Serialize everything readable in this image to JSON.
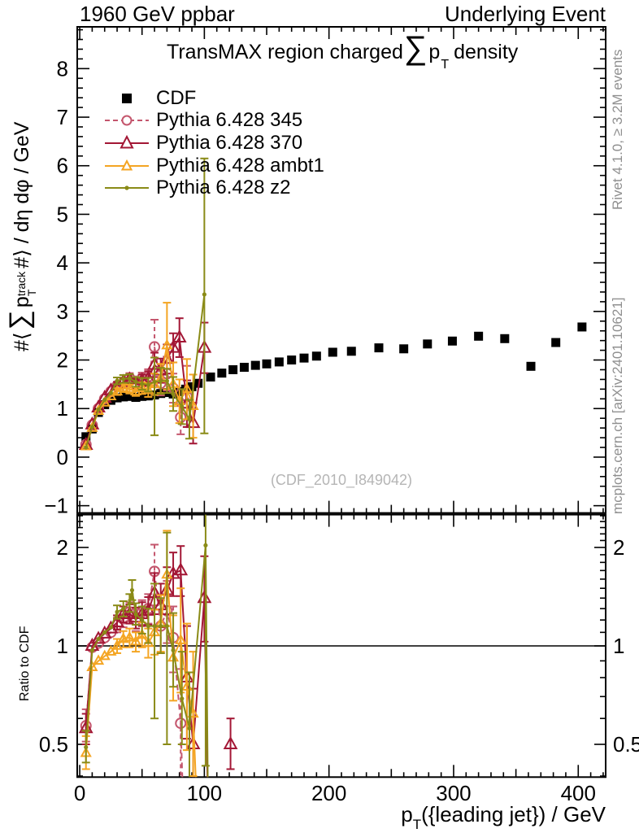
{
  "header": {
    "left": "1960 GeV ppbar",
    "right": "Underlying Event"
  },
  "side_notes": {
    "top": "Rivet 4.1.0, ≥ 3.2M events",
    "bottom": "mcplots.cern.ch [arXiv:2401.10621]"
  },
  "watermark": "(CDF_2010_I849042)",
  "title_parts": {
    "prefix": "TransMAX region charged",
    "sum": "∑",
    "p": "p",
    "sub": "T",
    "suffix": "density"
  },
  "axis_labels": {
    "y_main": {
      "prefix": "#⟨",
      "sum": "∑",
      "p": "p",
      "sup": "track",
      "sub": "T",
      "suffix": "#⟩ / dη dφ / GeV"
    },
    "y_ratio": "Ratio to CDF",
    "x": {
      "p": "p",
      "sub": "T",
      "rest": "({leading jet}) / GeV"
    }
  },
  "chart_data": {
    "type": "line",
    "title": "TransMAX region charged ∑ p_T density",
    "xlabel": "p_T({leading jet}) / GeV",
    "xlim": [
      -2,
      422
    ],
    "xticks": [
      0,
      100,
      200,
      300,
      400
    ],
    "xminor_step": 10,
    "legend_position": "top-left-inside",
    "grid": false,
    "panels": {
      "main": {
        "ylabel": "#⟨∑ p_T^track #⟩ / dη dφ / GeV",
        "ylim": [
          -1.15,
          8.86
        ],
        "yticks": [
          -1,
          0,
          1,
          2,
          3,
          4,
          5,
          6,
          7,
          8
        ],
        "yminor_step": 0.2
      },
      "ratio": {
        "ylabel": "Ratio to CDF",
        "yscale": "log",
        "ylim": [
          0.397,
          2.52
        ],
        "yticks": [
          0.5,
          1,
          2
        ],
        "ref_line": 1
      }
    },
    "series": [
      {
        "name": "CDF",
        "color": "#000000",
        "marker": "square",
        "line": "none",
        "main": [
          [
            [
              5,
              0.42
            ],
            [
              10,
              0.58
            ],
            [
              15,
              0.92
            ],
            [
              20,
              1.08
            ],
            [
              25,
              1.17
            ],
            [
              30,
              1.22
            ],
            [
              35,
              1.24
            ],
            [
              40,
              1.25
            ],
            [
              45,
              1.23
            ],
            [
              50,
              1.25
            ],
            [
              55,
              1.26
            ],
            [
              60,
              1.28
            ],
            [
              65,
              1.31
            ],
            [
              70,
              1.33
            ],
            [
              75,
              1.3
            ],
            [
              80,
              1.35
            ],
            [
              85,
              1.4
            ],
            [
              90,
              1.45
            ],
            [
              95,
              1.52
            ],
            [
              105,
              1.65
            ],
            [
              114,
              1.73
            ],
            [
              123,
              1.8
            ],
            [
              132,
              1.85
            ],
            [
              141,
              1.89
            ],
            [
              150,
              1.92
            ],
            [
              160,
              1.96
            ],
            [
              170,
              2.0
            ],
            [
              180,
              2.04
            ],
            [
              190,
              2.08
            ],
            [
              203,
              2.16
            ],
            [
              218,
              2.18
            ],
            [
              240,
              2.25
            ],
            [
              260,
              2.23
            ],
            [
              279,
              2.33
            ],
            [
              299,
              2.39
            ],
            [
              320,
              2.49
            ],
            [
              341,
              2.44
            ],
            [
              362,
              1.87
            ],
            [
              382,
              2.36
            ],
            [
              403,
              2.68
            ]
          ]
        ]
      },
      {
        "name": "Pythia 6.428 345",
        "color": "#c4566d",
        "marker": "circle-open",
        "line": "dashed",
        "main": [
          [
            [
              5,
              0.26
            ],
            [
              10,
              0.66
            ],
            [
              15,
              1.0
            ],
            [
              20,
              1.2
            ],
            [
              25,
              1.35
            ],
            [
              30,
              1.47,
              1.4,
              1.54
            ],
            [
              35,
              1.52,
              1.44,
              1.6
            ],
            [
              40,
              1.63,
              1.53,
              1.73
            ],
            [
              45,
              1.5,
              1.4,
              1.6
            ],
            [
              50,
              1.62,
              1.5,
              1.74
            ],
            [
              55,
              1.66,
              1.51,
              1.81
            ],
            [
              60,
              2.27,
              1.72,
              2.83
            ],
            [
              65,
              1.52,
              1.27,
              1.77
            ],
            [
              70,
              1.72,
              1.37,
              2.07
            ],
            [
              75,
              1.42,
              1.12,
              1.72
            ],
            [
              81,
              0.82,
              0.47,
              1.17
            ],
            [
              86,
              1.25,
              0.62,
              1.88
            ]
          ]
        ],
        "ratio": [
          [
            [
              5,
              0.57,
              0.51,
              0.64
            ],
            [
              10,
              0.99
            ],
            [
              15,
              1.02
            ],
            [
              20,
              1.06
            ],
            [
              25,
              1.1
            ],
            [
              30,
              1.16,
              1.1,
              1.22
            ],
            [
              35,
              1.21,
              1.14,
              1.28
            ],
            [
              40,
              1.27,
              1.19,
              1.36
            ],
            [
              45,
              1.2,
              1.11,
              1.29
            ],
            [
              50,
              1.27,
              1.16,
              1.38
            ],
            [
              55,
              1.3,
              1.17,
              1.44
            ],
            [
              60,
              1.69,
              1.33,
              2.04
            ],
            [
              65,
              1.15,
              0.95,
              1.38
            ],
            [
              70,
              1.28,
              1.02,
              1.58
            ],
            [
              75,
              1.06,
              0.83,
              1.32
            ],
            [
              81,
              0.58,
              0.38,
              0.85
            ],
            [
              83,
              0.33,
              null,
              null,
              0
            ]
          ]
        ]
      },
      {
        "name": "Pythia 6.428 370",
        "color": "#a31735",
        "marker": "triangle-open",
        "line": "solid",
        "main": [
          [
            [
              5,
              0.25
            ],
            [
              10,
              0.67
            ],
            [
              15,
              1.02
            ],
            [
              20,
              1.22
            ],
            [
              25,
              1.37
            ],
            [
              30,
              1.48,
              1.41,
              1.55
            ],
            [
              35,
              1.55,
              1.47,
              1.63
            ],
            [
              40,
              1.6,
              1.5,
              1.7
            ],
            [
              45,
              1.52,
              1.42,
              1.62
            ],
            [
              50,
              1.58,
              1.46,
              1.7
            ],
            [
              55,
              1.62,
              1.47,
              1.77
            ],
            [
              60,
              1.9,
              1.65,
              2.15
            ],
            [
              65,
              1.78,
              1.53,
              2.03
            ],
            [
              70,
              2.02,
              1.72,
              2.32
            ],
            [
              75,
              2.25,
              1.95,
              2.55
            ],
            [
              80,
              2.46,
              2.06,
              2.86
            ],
            [
              86,
              1.1,
              0.62,
              1.58
            ],
            [
              91,
              0.7,
              0.28,
              1.12
            ],
            [
              100,
              2.25,
              1.73,
              2.77
            ]
          ]
        ],
        "ratio": [
          [
            [
              5,
              0.56,
              0.5,
              0.62
            ],
            [
              10,
              1.0
            ],
            [
              15,
              1.05
            ],
            [
              20,
              1.09
            ],
            [
              25,
              1.13
            ],
            [
              30,
              1.18,
              1.12,
              1.24
            ],
            [
              35,
              1.25,
              1.18,
              1.32
            ],
            [
              40,
              1.25,
              1.17,
              1.34
            ],
            [
              45,
              1.22,
              1.13,
              1.31
            ],
            [
              50,
              1.25,
              1.15,
              1.36
            ],
            [
              55,
              1.28,
              1.16,
              1.41
            ],
            [
              60,
              1.45,
              1.25,
              1.67
            ],
            [
              65,
              1.33,
              1.14,
              1.55
            ],
            [
              70,
              1.48,
              1.25,
              1.74
            ],
            [
              75,
              1.66,
              1.42,
              1.93
            ],
            [
              81,
              1.7,
              1.42,
              2.02
            ],
            [
              86,
              0.8,
              0.52,
              1.15
            ],
            [
              91,
              0.5,
              0.33,
              0.74
            ],
            [
              100,
              1.4,
              1.03,
              1.88
            ],
            [
              103,
              0.3,
              null,
              null,
              0
            ]
          ],
          [
            [
              121,
              0.5,
              0.42,
              0.6
            ]
          ]
        ]
      },
      {
        "name": "Pythia 6.428 ambt1",
        "color": "#f4a523",
        "marker": "triangle-open-small",
        "line": "solid",
        "main": [
          [
            [
              5,
              0.22
            ],
            [
              10,
              0.6
            ],
            [
              15,
              0.95
            ],
            [
              20,
              1.12
            ],
            [
              25,
              1.25
            ],
            [
              30,
              1.35,
              1.28,
              1.42
            ],
            [
              35,
              1.42,
              1.34,
              1.5
            ],
            [
              40,
              1.4,
              1.31,
              1.49
            ],
            [
              45,
              1.35,
              1.26,
              1.44
            ],
            [
              50,
              1.42,
              1.3,
              1.54
            ],
            [
              55,
              1.38,
              1.24,
              1.52
            ],
            [
              60,
              1.5,
              1.28,
              1.72
            ],
            [
              65,
              1.62,
              1.32,
              1.92
            ],
            [
              70,
              2.3,
              1.4,
              3.18
            ],
            [
              75,
              1.5,
              1.05,
              1.95
            ],
            [
              80,
              1.15,
              0.7,
              1.6
            ],
            [
              86,
              1.4,
              0.78,
              2.02
            ],
            [
              91,
              1.05,
              0.4,
              1.7
            ]
          ]
        ],
        "ratio": [
          [
            [
              5,
              0.47,
              0.42,
              0.53
            ],
            [
              10,
              0.86
            ],
            [
              15,
              0.9
            ],
            [
              20,
              0.93
            ],
            [
              25,
              0.96
            ],
            [
              30,
              1.0,
              0.95,
              1.05
            ],
            [
              35,
              1.05,
              0.99,
              1.11
            ],
            [
              40,
              1.06,
              0.99,
              1.13
            ],
            [
              45,
              1.03,
              0.96,
              1.1
            ],
            [
              50,
              1.08,
              0.99,
              1.18
            ],
            [
              55,
              1.02,
              0.92,
              1.13
            ],
            [
              60,
              1.1,
              0.94,
              1.29
            ],
            [
              65,
              1.17,
              0.96,
              1.43
            ],
            [
              70,
              1.65,
              1.15,
              2.25
            ],
            [
              75,
              0.92,
              0.68,
              1.24
            ],
            [
              81,
              1.04,
              0.72,
              1.5
            ],
            [
              86,
              0.75,
              0.48,
              1.17
            ],
            [
              91,
              0.62,
              0.4,
              0.96
            ],
            [
              94,
              0.32,
              null,
              null,
              0
            ]
          ]
        ]
      },
      {
        "name": "Pythia 6.428 z2",
        "color": "#8a8b17",
        "marker": "dot",
        "line": "solid",
        "main": [
          [
            [
              5,
              0.2
            ],
            [
              10,
              0.62
            ],
            [
              15,
              0.98
            ],
            [
              20,
              1.18
            ],
            [
              25,
              1.32
            ],
            [
              30,
              1.57,
              1.5,
              1.64
            ],
            [
              35,
              1.61,
              1.53,
              1.69
            ],
            [
              40,
              1.62,
              1.53,
              1.71
            ],
            [
              45,
              1.55,
              1.45,
              1.65
            ],
            [
              50,
              1.51,
              1.39,
              1.63
            ],
            [
              55,
              1.49,
              1.35,
              1.63
            ],
            [
              60,
              1.55,
              0.45,
              2.05
            ],
            [
              65,
              1.57,
              1.3,
              1.84
            ],
            [
              70,
              1.57,
              1.32,
              1.82
            ],
            [
              75,
              1.3,
              0.95,
              1.65
            ],
            [
              82,
              1.04,
              0.68,
              1.4
            ],
            [
              88,
              0.78,
              0.38,
              1.18
            ],
            [
              100,
              3.35,
              0.49,
              6.15
            ]
          ]
        ],
        "ratio": [
          [
            [
              5,
              0.49,
              0.44,
              0.55
            ],
            [
              10,
              0.97
            ],
            [
              15,
              1.05
            ],
            [
              20,
              1.1
            ],
            [
              25,
              1.14
            ],
            [
              30,
              1.27,
              1.21,
              1.33
            ],
            [
              35,
              1.3,
              1.23,
              1.37
            ],
            [
              40,
              1.35,
              1.27,
              1.44
            ],
            [
              42,
              1.48,
              1.38,
              1.59
            ],
            [
              45,
              1.25,
              1.16,
              1.35
            ],
            [
              50,
              1.2,
              1.09,
              1.32
            ],
            [
              55,
              1.15,
              1.02,
              1.3
            ],
            [
              60,
              1.15,
              0.6,
              1.55
            ],
            [
              65,
              1.15,
              0.95,
              1.4
            ],
            [
              70,
              1.15,
              0.5,
              2.22
            ],
            [
              75,
              0.97,
              0.75,
              1.26
            ],
            [
              82,
              0.69,
              0.5,
              0.96
            ],
            [
              88,
              0.56,
              0.38,
              0.83
            ],
            [
              101,
              2.03,
              0.43,
              2.6
            ],
            [
              103,
              0.3,
              null,
              null,
              0
            ]
          ]
        ]
      }
    ]
  }
}
